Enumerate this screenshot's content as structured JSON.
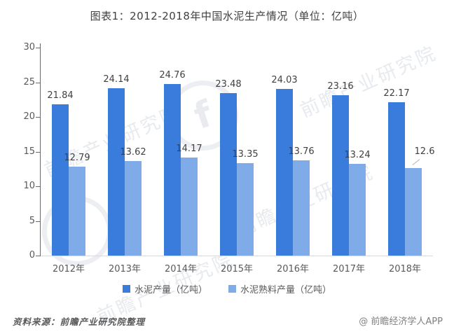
{
  "title": "图表1：2012-2018年中国水泥生产情况（单位：亿吨）",
  "chart_data": {
    "type": "bar",
    "categories": [
      "2012年",
      "2013年",
      "2014年",
      "2015年",
      "2016年",
      "2017年",
      "2018年"
    ],
    "series": [
      {
        "name": "水泥产量（亿吨）",
        "color": "#3a7cdc",
        "values": [
          21.84,
          24.14,
          24.76,
          23.48,
          24.03,
          23.16,
          22.17
        ]
      },
      {
        "name": "水泥熟料产量（亿吨）",
        "color": "#7fabe8",
        "values": [
          12.79,
          13.62,
          14.17,
          13.35,
          13.76,
          13.24,
          12.6
        ]
      }
    ],
    "title": "图表1：2012-2018年中国水泥生产情况（单位：亿吨）",
    "xlabel": "",
    "ylabel": "",
    "ylim": [
      0,
      30
    ],
    "yticks": [
      0,
      5,
      10,
      15,
      20,
      25,
      30
    ],
    "grid": false,
    "legend_position": "bottom",
    "callout": {
      "series": 1,
      "index": 6
    }
  },
  "footer": {
    "source": "资料来源：前瞻产业研究院整理",
    "credit": "@ 前瞻经济学人APP"
  },
  "watermark": {
    "text": "前瞻产业研究院",
    "logo_glyph": "f"
  }
}
